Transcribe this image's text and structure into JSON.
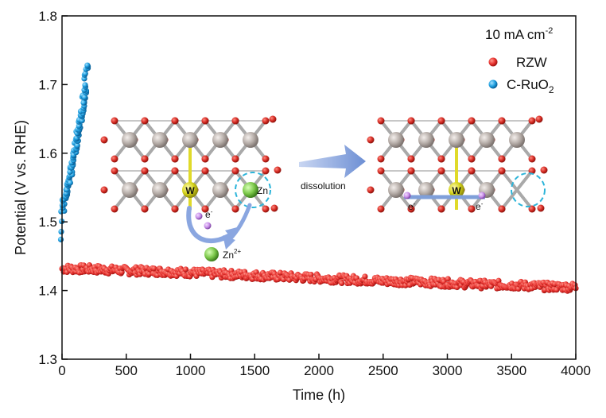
{
  "colors": {
    "rzw": "#e8322f",
    "ruo2": "#1e9fe0",
    "axis": "#111111",
    "arrow": "#7f9fd9",
    "dashed_circle": "#2bb4d9",
    "metal": "#b4aba6",
    "oxygen": "#d42a22",
    "bond_grey": "#9a9a9a",
    "w_atom": "#d4d21a",
    "zn_atom": "#7cc84a",
    "electron": "#c78ee8"
  },
  "chart_data": {
    "type": "scatter",
    "xlabel": "Time (h)",
    "ylabel": "Potential (V vs. RHE)",
    "xlim": [
      0,
      4000
    ],
    "ylim": [
      1.3,
      1.8
    ],
    "xticks": [
      "0",
      "500",
      "1000",
      "1500",
      "2000",
      "2500",
      "3000",
      "3500",
      "4000"
    ],
    "yticks": [
      "1.3",
      "1.4",
      "1.5",
      "1.6",
      "1.7",
      "1.8"
    ],
    "grid": false,
    "legend_position": "top-right",
    "legend_title": {
      "base": "10 mA cm",
      "sup": "-2"
    },
    "series": [
      {
        "name": "RZW",
        "color_key": "rzw",
        "x": [
          0,
          250,
          500,
          750,
          1000,
          1250,
          1500,
          1750,
          2000,
          2250,
          2500,
          2750,
          3000,
          3250,
          3500,
          3750,
          4000
        ],
        "y": [
          1.432,
          1.431,
          1.429,
          1.428,
          1.426,
          1.424,
          1.422,
          1.42,
          1.418,
          1.416,
          1.414,
          1.413,
          1.411,
          1.409,
          1.408,
          1.406,
          1.405
        ],
        "noise": 0.006
      },
      {
        "name_base": "C-RuO",
        "name_sub": "2",
        "color_key": "ruo2",
        "x": [
          0,
          5,
          10,
          20,
          40,
          60,
          80,
          100,
          120,
          140,
          160,
          180,
          195
        ],
        "y": [
          1.476,
          1.515,
          1.525,
          1.535,
          1.548,
          1.562,
          1.582,
          1.605,
          1.625,
          1.645,
          1.665,
          1.695,
          1.73
        ],
        "noise": 0.004
      }
    ]
  },
  "inset": {
    "arrow_label": "dissolution",
    "w_label": "W",
    "zn_label": "Zn",
    "electron_label": "e",
    "electron_sup": "-",
    "zn_ion_label": "Zn",
    "zn_ion_sup": "2+"
  }
}
